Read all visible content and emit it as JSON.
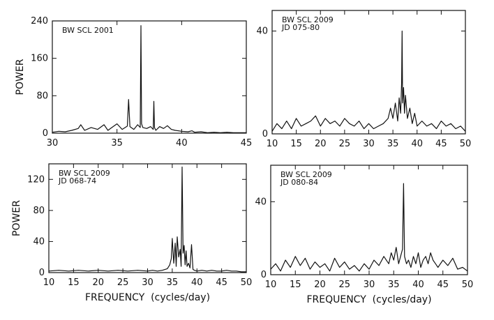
{
  "chart_data": [
    {
      "type": "line",
      "label_lines": [
        "BW SCL 2001"
      ],
      "xlim": [
        30,
        45
      ],
      "ylim": [
        0,
        240
      ],
      "xticks": [
        30,
        35,
        40,
        45
      ],
      "yticks": [
        0,
        80,
        160,
        240
      ],
      "ylabel": "POWER",
      "xlabel": "",
      "grid": false,
      "series": [
        {
          "x": [
            30.0,
            30.5,
            31.0,
            31.5,
            32.0,
            32.2,
            32.5,
            33.0,
            33.5,
            34.0,
            34.3,
            34.6,
            35.0,
            35.4,
            35.8,
            35.9,
            36.0,
            36.3,
            36.6,
            36.8,
            36.85,
            36.9,
            37.0,
            37.3,
            37.6,
            37.8,
            37.85,
            37.9,
            38.0,
            38.3,
            38.6,
            38.9,
            39.2,
            39.5,
            40.0,
            40.5,
            40.8,
            41.0,
            41.5,
            42.0,
            42.5,
            43.0,
            43.5,
            44.0,
            44.5,
            45.0
          ],
          "y": [
            2,
            4,
            3,
            6,
            10,
            18,
            6,
            12,
            8,
            18,
            6,
            12,
            20,
            8,
            15,
            72,
            14,
            8,
            18,
            12,
            230,
            20,
            12,
            10,
            14,
            8,
            68,
            12,
            6,
            14,
            10,
            16,
            8,
            6,
            4,
            3,
            5,
            2,
            3,
            1,
            2,
            1,
            2,
            1,
            1,
            1
          ]
        }
      ]
    },
    {
      "type": "line",
      "label_lines": [
        "BW SCL 2009",
        "JD 075-80"
      ],
      "xlim": [
        10,
        50
      ],
      "ylim": [
        0,
        48
      ],
      "xticks": [
        10,
        15,
        20,
        25,
        30,
        35,
        40,
        45,
        50
      ],
      "yticks": [
        0,
        40
      ],
      "ylabel": "",
      "xlabel": "",
      "grid": false,
      "series": [
        {
          "x": [
            10,
            11,
            12,
            13,
            14,
            15,
            16,
            17,
            18,
            19,
            20,
            21,
            22,
            23,
            24,
            25,
            26,
            27,
            28,
            29,
            30,
            31,
            32,
            33,
            34,
            34.5,
            35,
            35.5,
            36,
            36.3,
            36.6,
            36.8,
            36.9,
            37.0,
            37.2,
            37.4,
            37.6,
            38,
            38.5,
            39,
            39.5,
            40,
            41,
            42,
            43,
            44,
            45,
            46,
            47,
            48,
            49,
            50
          ],
          "y": [
            1,
            4,
            2,
            5,
            2,
            6,
            3,
            4,
            5,
            7,
            3,
            6,
            4,
            5,
            3,
            6,
            4,
            3,
            5,
            2,
            4,
            2,
            3,
            4,
            6,
            10,
            6,
            12,
            5,
            14,
            8,
            20,
            40,
            12,
            18,
            8,
            15,
            6,
            10,
            4,
            8,
            3,
            5,
            3,
            4,
            2,
            5,
            3,
            4,
            2,
            3,
            1
          ]
        }
      ]
    },
    {
      "type": "line",
      "label_lines": [
        "BW SCL 2009",
        "JD 068-74"
      ],
      "xlim": [
        10,
        50
      ],
      "ylim": [
        0,
        140
      ],
      "xticks": [
        10,
        15,
        20,
        25,
        30,
        35,
        40,
        45,
        50
      ],
      "yticks": [
        0,
        40,
        80,
        120
      ],
      "ylabel": "POWER",
      "xlabel": "FREQUENCY  (cycles/day)",
      "grid": false,
      "series": [
        {
          "x": [
            10,
            12,
            14,
            16,
            18,
            20,
            22,
            24,
            26,
            28,
            30,
            31,
            32,
            33,
            34,
            34.5,
            34.8,
            35.0,
            35.3,
            35.6,
            35.8,
            36.0,
            36.3,
            36.6,
            36.8,
            37.0,
            37.2,
            37.4,
            37.6,
            37.8,
            38.0,
            38.3,
            38.6,
            38.9,
            39.2,
            39.5,
            40,
            41,
            42,
            43,
            44,
            45,
            46,
            47,
            48,
            49,
            50
          ],
          "y": [
            2,
            3,
            2,
            3,
            2,
            3,
            2,
            3,
            2,
            3,
            2,
            3,
            2,
            3,
            5,
            10,
            18,
            44,
            12,
            38,
            8,
            46,
            20,
            30,
            8,
            136,
            25,
            35,
            10,
            28,
            8,
            12,
            6,
            36,
            4,
            3,
            2,
            3,
            2,
            3,
            2,
            2,
            3,
            2,
            2,
            1,
            1
          ]
        }
      ]
    },
    {
      "type": "line",
      "label_lines": [
        "BW SCL 2009",
        "JD 080-84"
      ],
      "xlim": [
        10,
        50
      ],
      "ylim": [
        0,
        60
      ],
      "xticks": [
        10,
        15,
        20,
        25,
        30,
        35,
        40,
        45,
        50
      ],
      "yticks": [
        0,
        40
      ],
      "ylabel": "",
      "xlabel": "FREQUENCY  (cycles/day)",
      "grid": false,
      "series": [
        {
          "x": [
            10,
            11,
            12,
            13,
            14,
            15,
            16,
            17,
            18,
            19,
            20,
            21,
            22,
            23,
            24,
            25,
            26,
            27,
            28,
            29,
            30,
            31,
            32,
            33,
            34,
            34.5,
            35,
            35.5,
            36,
            36.4,
            36.8,
            37.0,
            37.2,
            37.6,
            38,
            38.5,
            39,
            39.5,
            40,
            40.5,
            41,
            41.5,
            42,
            42.5,
            43,
            43.5,
            44,
            45,
            46,
            47,
            48,
            49,
            50
          ],
          "y": [
            3,
            6,
            2,
            8,
            4,
            10,
            5,
            9,
            3,
            7,
            4,
            6,
            2,
            9,
            4,
            7,
            3,
            5,
            2,
            6,
            3,
            8,
            5,
            10,
            6,
            12,
            8,
            15,
            6,
            10,
            14,
            50,
            10,
            6,
            8,
            4,
            10,
            6,
            12,
            4,
            8,
            10,
            6,
            12,
            8,
            6,
            4,
            8,
            5,
            9,
            3,
            4,
            2
          ]
        }
      ]
    }
  ]
}
